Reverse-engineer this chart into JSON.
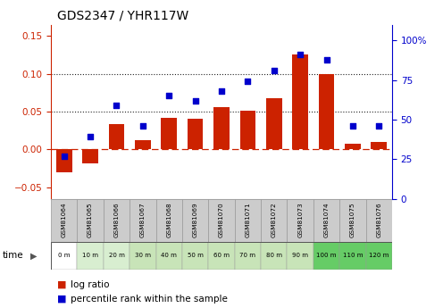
{
  "title": "GDS2347 / YHR117W",
  "samples": [
    "GSM81064",
    "GSM81065",
    "GSM81066",
    "GSM81067",
    "GSM81068",
    "GSM81069",
    "GSM81070",
    "GSM81071",
    "GSM81072",
    "GSM81073",
    "GSM81074",
    "GSM81075",
    "GSM81076"
  ],
  "time_labels": [
    "0 m",
    "10 m",
    "20 m",
    "30 m",
    "40 m",
    "50 m",
    "60 m",
    "70 m",
    "80 m",
    "90 m",
    "100 m",
    "110 m",
    "120 m"
  ],
  "log_ratio": [
    -0.03,
    -0.018,
    0.034,
    0.012,
    0.042,
    0.041,
    0.056,
    0.051,
    0.068,
    0.125,
    0.1,
    0.008,
    0.01
  ],
  "percentile": [
    27,
    39,
    59,
    46,
    65,
    62,
    68,
    74,
    81,
    91,
    88,
    46,
    46
  ],
  "bar_color": "#cc2200",
  "dot_color": "#0000cc",
  "zero_line_color": "#cc2200",
  "dotted_line_color": "#222222",
  "ylim_left": [
    -0.065,
    0.165
  ],
  "ylim_right": [
    0,
    110
  ],
  "yticks_left": [
    -0.05,
    0.0,
    0.05,
    0.1,
    0.15
  ],
  "yticks_right": [
    0,
    25,
    50,
    75,
    100
  ],
  "ytick_labels_right": [
    "0",
    "25",
    "50",
    "75",
    "100%"
  ],
  "dotted_lines": [
    0.05,
    0.1
  ],
  "time_bg_colors": [
    "#ffffff",
    "#d8eed0",
    "#d8eed0",
    "#c8e4b8",
    "#c8e4b8",
    "#c8e4b8",
    "#c8e4b8",
    "#c8e4b8",
    "#c8e4b8",
    "#c8e4b8",
    "#66cc66",
    "#66cc66",
    "#66cc66"
  ],
  "sample_bg_color": "#cccccc",
  "background_color": "#ffffff"
}
